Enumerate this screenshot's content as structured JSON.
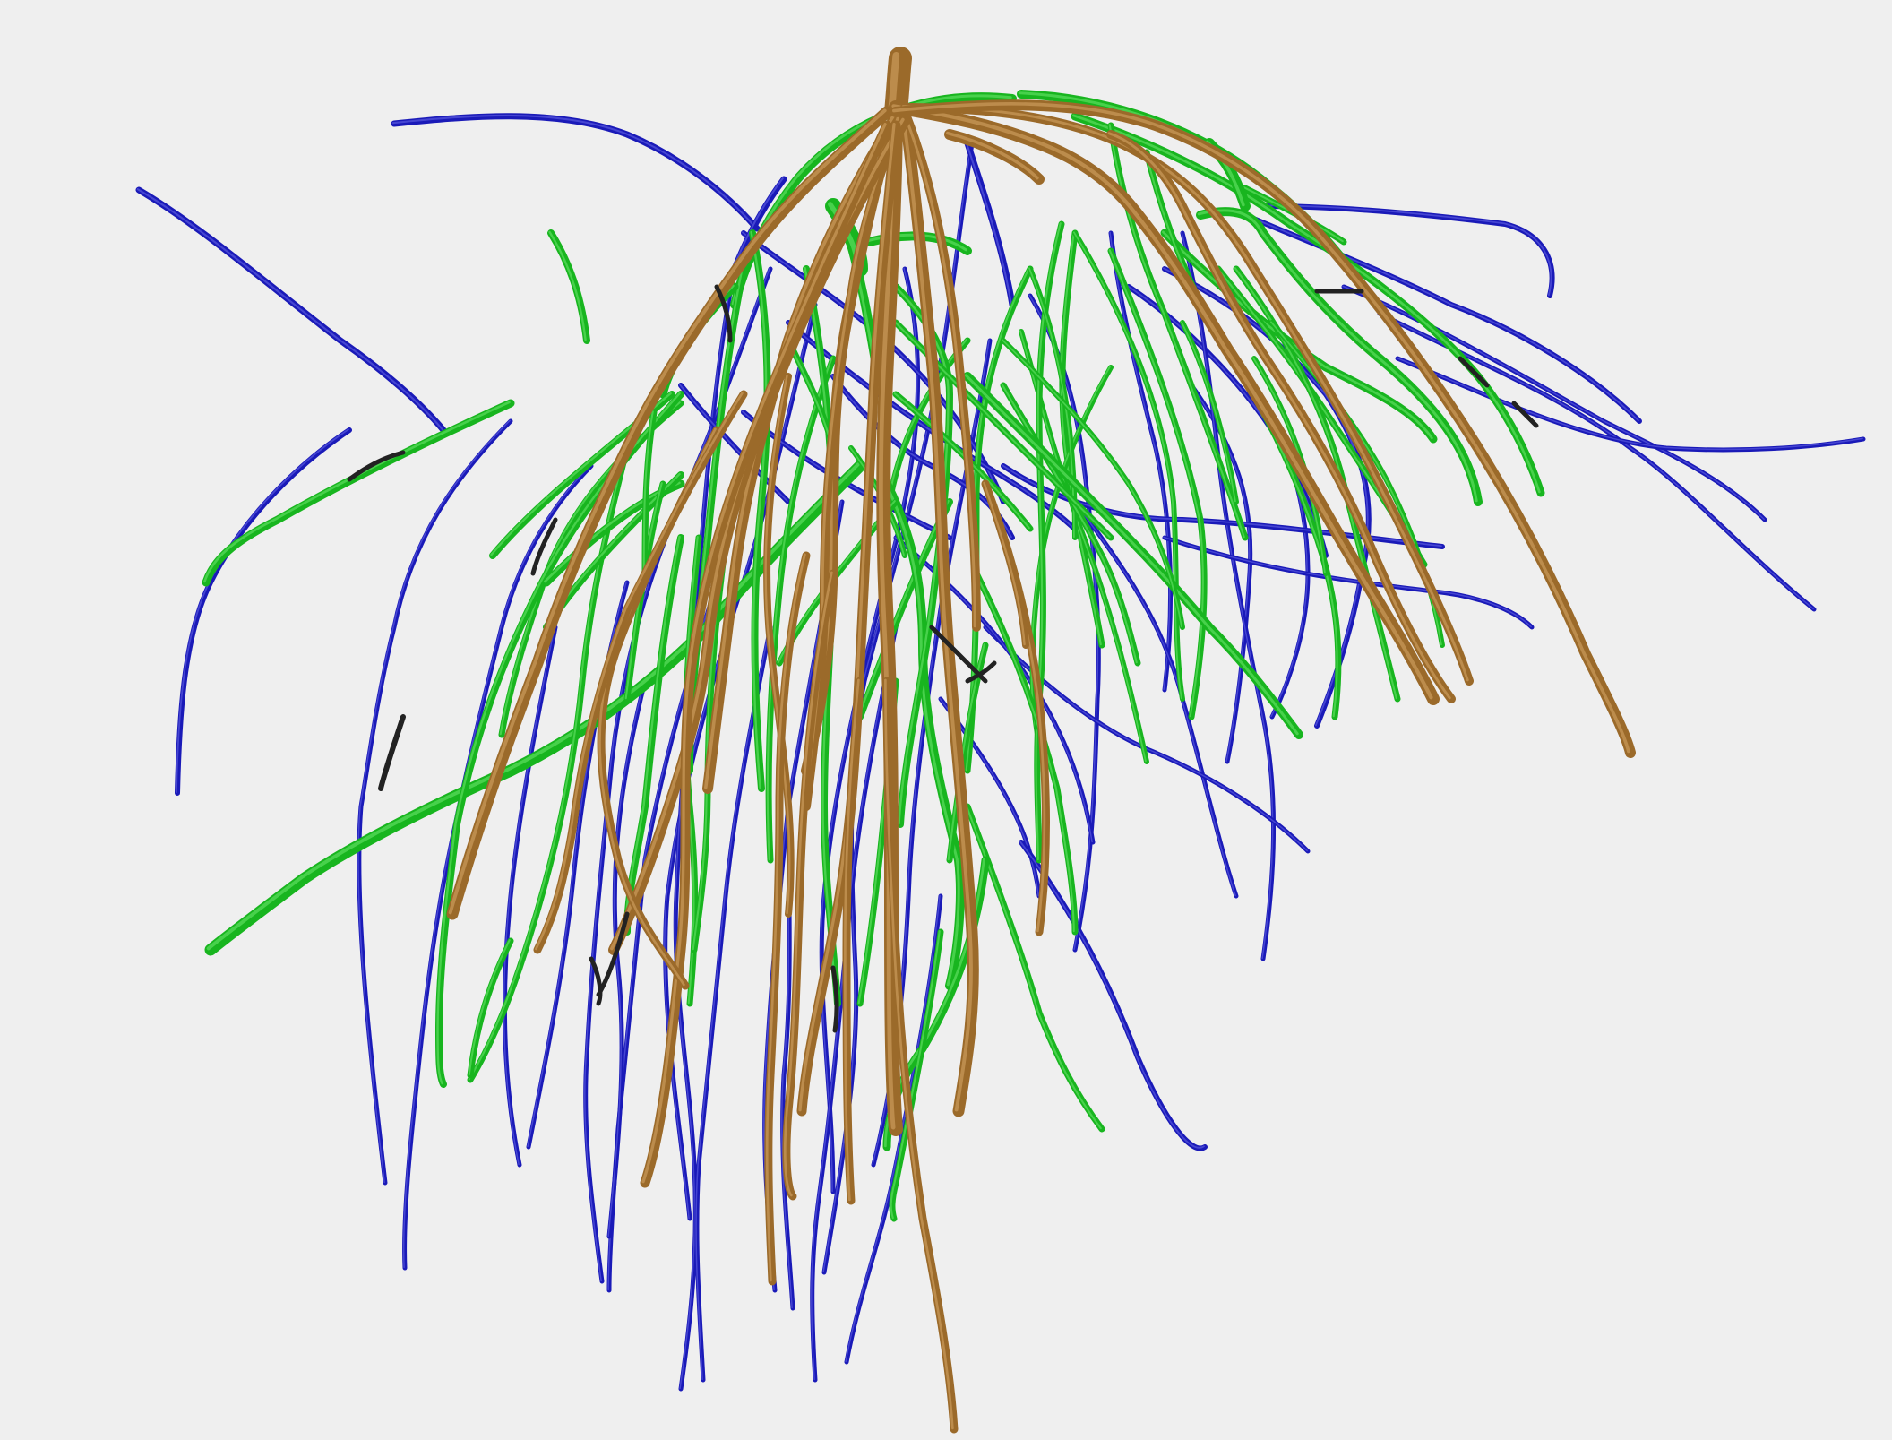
{
  "scene": {
    "background": "#efefef",
    "colors": {
      "primary": "#9b6a2a",
      "primary_highlight": "#d7a868",
      "secondary": "#18b51f",
      "secondary_highlight": "#6fe86f",
      "tertiary": "#1a1ab8",
      "tertiary_highlight": "#6a6ae8",
      "dark_tip": "#222222"
    }
  }
}
